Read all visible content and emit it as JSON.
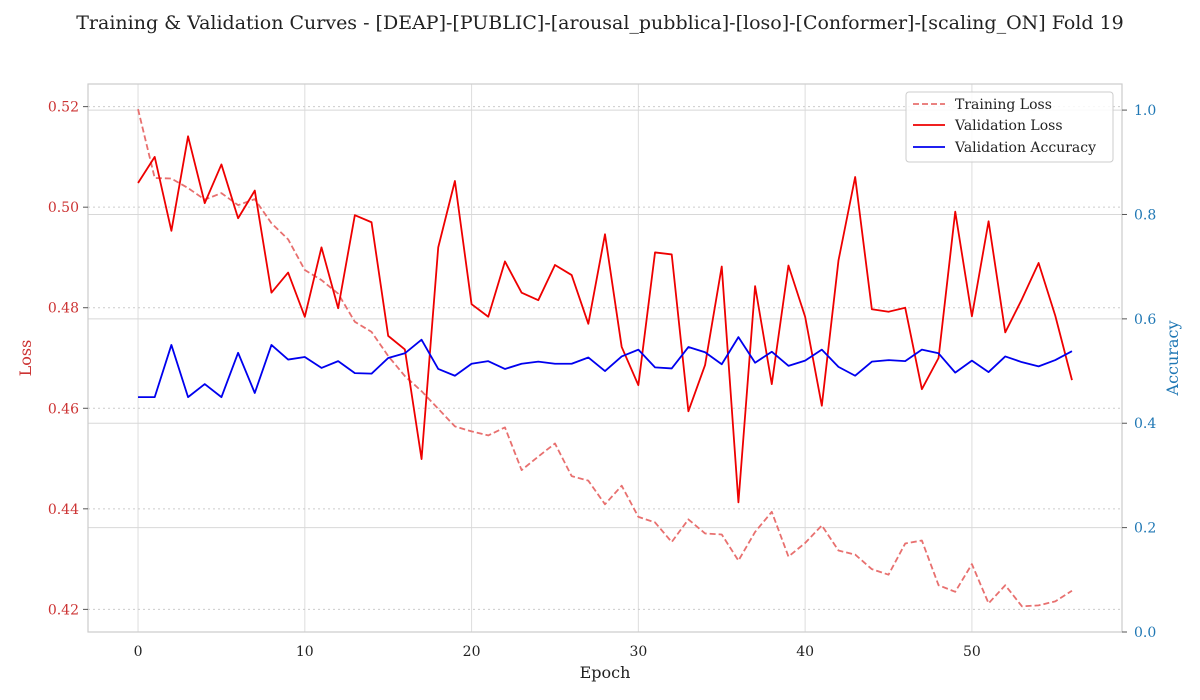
{
  "chart_data": {
    "type": "line",
    "title": "Training & Validation Curves - [DEAP]-[PUBLIC]-[arousal_pubblica]-[loso]-[Conformer]-[scaling_ON] Fold 19",
    "xlabel": "Epoch",
    "ylabel_left": "Loss",
    "ylabel_right": "Accuracy",
    "xlim": [
      -3,
      59
    ],
    "ylim_left": [
      0.4155,
      0.5245
    ],
    "ylim_right": [
      0.0,
      1.05
    ],
    "xticks": [
      0,
      10,
      20,
      30,
      40,
      50
    ],
    "yticks_left": [
      0.42,
      0.44,
      0.46,
      0.48,
      0.5,
      0.52
    ],
    "yticks_left_labels": [
      "0.42",
      "0.44",
      "0.46",
      "0.48",
      "0.50",
      "0.52"
    ],
    "yticks_right": [
      0.0,
      0.2,
      0.4,
      0.6,
      0.8,
      1.0
    ],
    "yticks_right_labels": [
      "0.0",
      "0.2",
      "0.4",
      "0.6",
      "0.8",
      "1.0"
    ],
    "grid": true,
    "legend_position": "top-right",
    "colors": {
      "training_loss": "#e8706f",
      "validation_loss": "#ee0000",
      "validation_accuracy": "#0000ee",
      "left_axis": "#cc3333",
      "right_axis": "#1f77b4"
    },
    "series": [
      {
        "name": "Training Loss",
        "axis": "left",
        "style": "dashed",
        "values": [
          0.5195,
          0.5058,
          0.5057,
          0.5038,
          0.5015,
          0.5028,
          0.5004,
          0.5016,
          0.4968,
          0.4936,
          0.4875,
          0.4855,
          0.4828,
          0.4772,
          0.4752,
          0.4704,
          0.4664,
          0.4634,
          0.4599,
          0.4564,
          0.4554,
          0.4546,
          0.4562,
          0.4477,
          0.4504,
          0.453,
          0.4465,
          0.4456,
          0.4409,
          0.4446,
          0.4384,
          0.4373,
          0.4334,
          0.4379,
          0.4351,
          0.4349,
          0.4297,
          0.4354,
          0.4394,
          0.4305,
          0.4332,
          0.4367,
          0.4317,
          0.4309,
          0.428,
          0.4269,
          0.4331,
          0.4337,
          0.4248,
          0.4235,
          0.429,
          0.4212,
          0.4248,
          0.4206,
          0.4208,
          0.4216,
          0.4237
        ]
      },
      {
        "name": "Validation Loss",
        "axis": "left",
        "style": "solid",
        "values": [
          0.5048,
          0.51,
          0.4953,
          0.5141,
          0.5008,
          0.5085,
          0.4978,
          0.5033,
          0.483,
          0.487,
          0.4782,
          0.492,
          0.4799,
          0.4984,
          0.497,
          0.4744,
          0.4717,
          0.4499,
          0.492,
          0.5052,
          0.4807,
          0.4782,
          0.4892,
          0.483,
          0.4815,
          0.4885,
          0.4865,
          0.4768,
          0.4946,
          0.4722,
          0.4646,
          0.491,
          0.4906,
          0.4594,
          0.4686,
          0.4882,
          0.4413,
          0.4843,
          0.4648,
          0.4884,
          0.4782,
          0.4605,
          0.4894,
          0.506,
          0.4797,
          0.4792,
          0.48,
          0.4638,
          0.47,
          0.4991,
          0.4783,
          0.4972,
          0.4751,
          0.4817,
          0.4889,
          0.4784,
          0.4656
        ]
      },
      {
        "name": "Validation Accuracy",
        "axis": "right",
        "style": "solid",
        "values": [
          0.45,
          0.45,
          0.55,
          0.45,
          0.475,
          0.45,
          0.535,
          0.458,
          0.55,
          0.522,
          0.527,
          0.506,
          0.519,
          0.496,
          0.495,
          0.525,
          0.534,
          0.56,
          0.504,
          0.491,
          0.514,
          0.519,
          0.504,
          0.514,
          0.518,
          0.514,
          0.514,
          0.526,
          0.5,
          0.528,
          0.541,
          0.507,
          0.505,
          0.546,
          0.536,
          0.513,
          0.565,
          0.516,
          0.537,
          0.51,
          0.52,
          0.541,
          0.508,
          0.491,
          0.518,
          0.521,
          0.519,
          0.541,
          0.534,
          0.497,
          0.52,
          0.498,
          0.528,
          0.517,
          0.509,
          0.521,
          0.538
        ]
      }
    ]
  }
}
